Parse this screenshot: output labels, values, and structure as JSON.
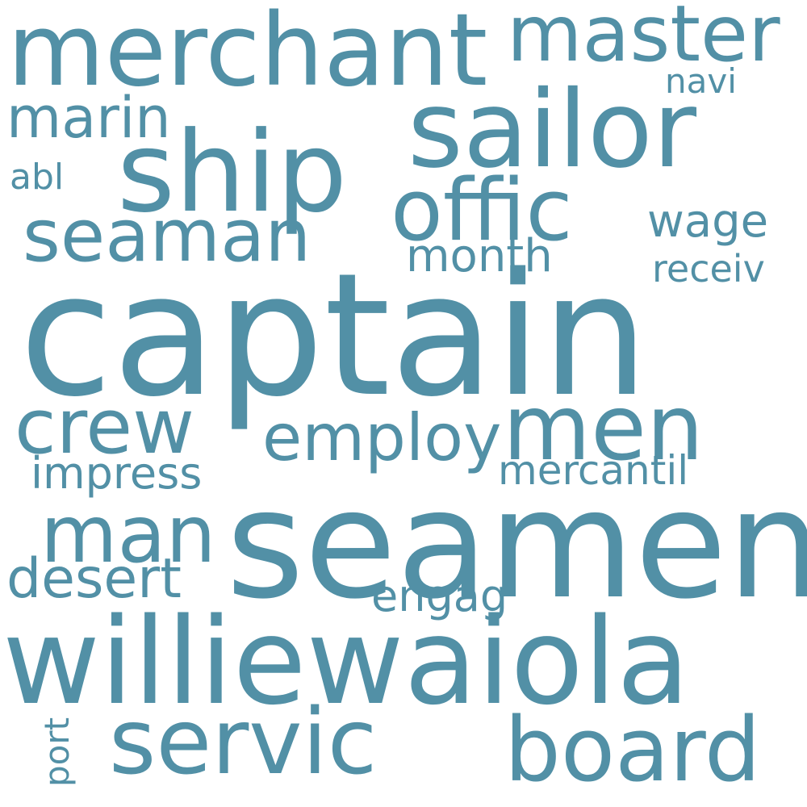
{
  "word_color": "#5290a6",
  "background_color": "#ffffff",
  "words": {
    "captain": "captain",
    "seamen": "seamen",
    "williewaiola": "williewaiola",
    "merchant": "merchant",
    "sailor": "sailor",
    "ship": "ship",
    "master": "master",
    "offic": "offic",
    "men": "men",
    "servic": "servic",
    "board": "board",
    "seaman": "seaman",
    "crew": "crew",
    "employ": "employ",
    "man": "man",
    "marin": "marin",
    "desert": "desert",
    "impress": "impress",
    "wage": "wage",
    "month": "month",
    "mercantil": "mercantil",
    "engag": "engag",
    "receiv": "receiv",
    "navi": "navi",
    "abl": "abl",
    "port": "port"
  }
}
